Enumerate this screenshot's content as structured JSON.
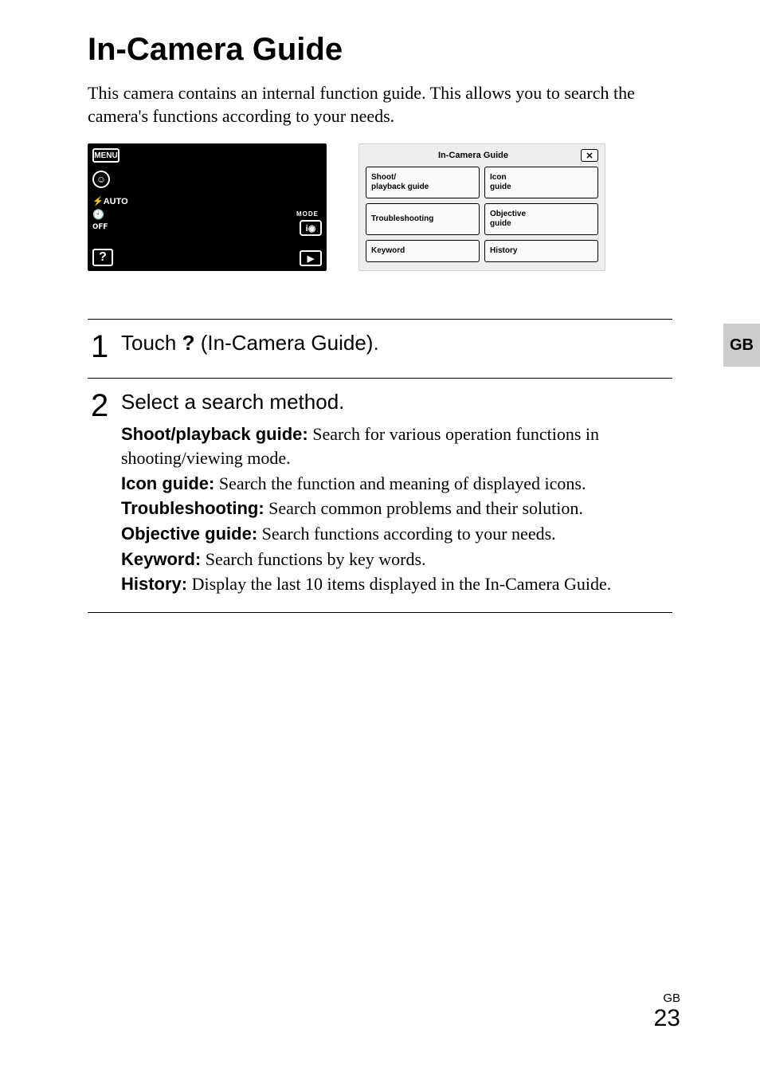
{
  "title": "In-Camera Guide",
  "intro": "This camera contains an internal function guide. This allows you to search the camera's functions according to your needs.",
  "side_tab": "GB",
  "lcd": {
    "menu": "MENU",
    "smile": "☺",
    "flash": "⚡AUTO",
    "timer": "🕙ᴏꜰꜰ",
    "help": "?",
    "mode_label": "MODE",
    "mode": "i◉",
    "play": "▶"
  },
  "guide": {
    "header": "In-Camera Guide",
    "close": "✕",
    "cells": [
      "Shoot/\nplayback guide",
      "Icon\nguide",
      "Troubleshooting",
      "Objective\nguide",
      "Keyword",
      "History"
    ]
  },
  "steps": [
    {
      "num": "1",
      "heading_pre": "Touch ",
      "heading_icon": "?",
      "heading_post": " (In-Camera Guide).",
      "items": []
    },
    {
      "num": "2",
      "heading_pre": "Select a search method.",
      "heading_icon": "",
      "heading_post": "",
      "items": [
        {
          "label": "Shoot/playback guide:",
          "text": " Search for various operation functions in shooting/viewing mode."
        },
        {
          "label": "Icon guide:",
          "text": " Search the function and meaning of displayed icons."
        },
        {
          "label": "Troubleshooting:",
          "text": " Search common problems and their solution."
        },
        {
          "label": "Objective guide:",
          "text": " Search functions according to your needs."
        },
        {
          "label": "Keyword:",
          "text": " Search functions by key words."
        },
        {
          "label": "History:",
          "text": " Display the last 10 items displayed in the In-Camera Guide."
        }
      ]
    }
  ],
  "footer": {
    "lang": "GB",
    "page": "23"
  }
}
